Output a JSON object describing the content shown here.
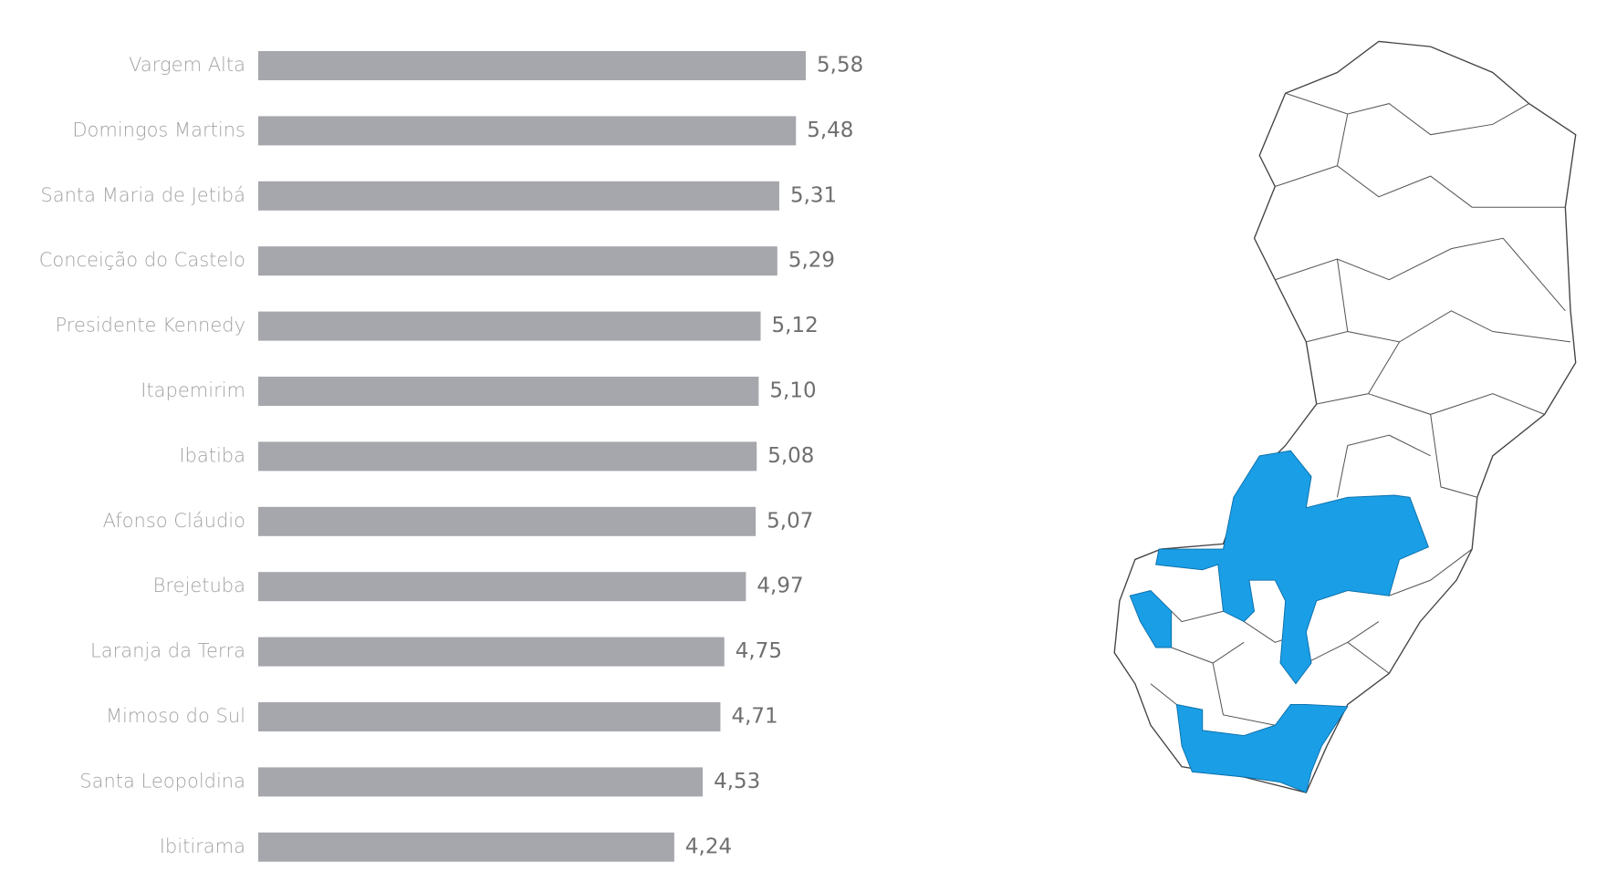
{
  "chart_data": {
    "type": "bar",
    "orientation": "horizontal",
    "categories": [
      "Vargem Alta",
      "Domingos Martins",
      "Santa Maria de Jetibá",
      "Conceição do Castelo",
      "Presidente Kennedy",
      "Itapemirim",
      "Ibatiba",
      "Afonso Cláudio",
      "Brejetuba",
      "Laranja da Terra",
      "Mimoso do Sul",
      "Santa Leopoldina",
      "Ibitirama"
    ],
    "values": [
      5.58,
      5.48,
      5.31,
      5.29,
      5.12,
      5.1,
      5.08,
      5.07,
      4.97,
      4.75,
      4.71,
      4.53,
      4.24
    ],
    "value_labels": [
      "5,58",
      "5,48",
      "5,31",
      "5,29",
      "5,12",
      "5,10",
      "5,08",
      "5,07",
      "4,97",
      "4,75",
      "4,71",
      "4,53",
      "4,24"
    ],
    "color": "#a5a7ad"
  }
}
